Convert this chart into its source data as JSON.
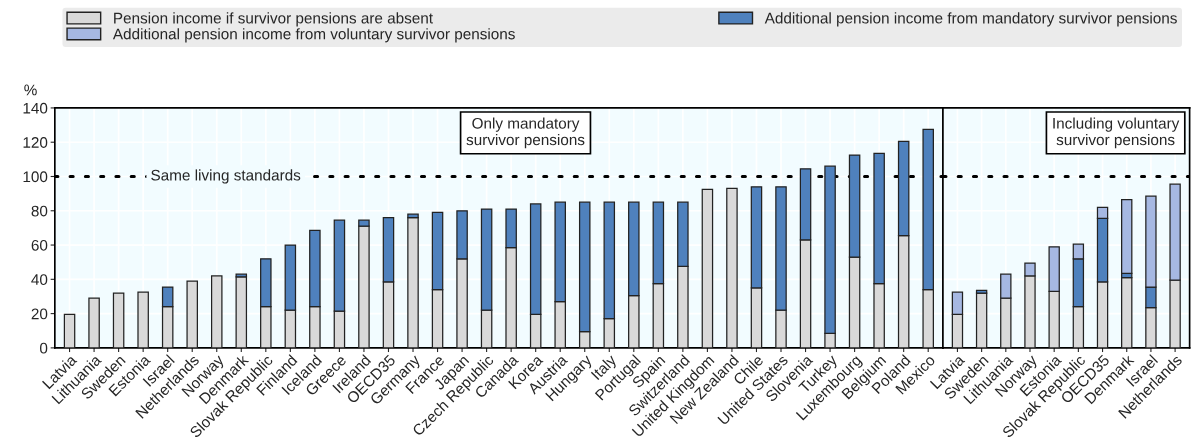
{
  "chart_data": [
    {
      "type": "bar",
      "stacked": true,
      "ylabel": "%",
      "categories": [
        "Latvia",
        "Lithuania",
        "Sweden",
        "Estonia",
        "Israel",
        "Netherlands",
        "Norway",
        "Denmark",
        "Slovak Republic",
        "Finland",
        "Iceland",
        "Greece",
        "Ireland",
        "OECD35",
        "Germany",
        "France",
        "Japan",
        "Czech Republic",
        "Canada",
        "Korea",
        "Austria",
        "Hungary",
        "Italy",
        "Portugal",
        "Spain",
        "Switzerland",
        "United Kingdom",
        "New Zealand",
        "Chile",
        "United States",
        "Slovenia",
        "Turkey",
        "Luxembourg",
        "Belgium",
        "Poland",
        "Mexico"
      ],
      "series": [
        {
          "name": "Pension income if survivor pensions are absent",
          "color": "#d9d9d9",
          "values": [
            19.5,
            29,
            32,
            32.5,
            24,
            39,
            42,
            41.5,
            24,
            22,
            24,
            21.5,
            71,
            38.5,
            76,
            34,
            52,
            22,
            58.5,
            19.5,
            27,
            9.5,
            17,
            30.5,
            37.5,
            47.5,
            92.5,
            93,
            35,
            22,
            63,
            8.5,
            53,
            37.5,
            65.5,
            34
          ]
        },
        {
          "name": "Additional pension income from mandatory survivor pensions",
          "color": "#4f81bd",
          "values": [
            null,
            null,
            null,
            null,
            11.5,
            null,
            null,
            1.5,
            28,
            38,
            44.5,
            53,
            3.5,
            37.5,
            2,
            45,
            28,
            59,
            22.5,
            64.5,
            58,
            75.5,
            68,
            54.5,
            47.5,
            37.5,
            null,
            null,
            59,
            72,
            41.5,
            97.5,
            59.5,
            76,
            55,
            93.5
          ]
        },
        {
          "name": "Additional pension income from voluntary survivor pensions",
          "color": "#a6b8e2",
          "values": [
            null,
            null,
            null,
            null,
            null,
            null,
            null,
            null,
            null,
            null,
            null,
            null,
            null,
            null,
            null,
            null,
            null,
            null,
            null,
            null,
            null,
            null,
            null,
            null,
            null,
            null,
            null,
            null,
            null,
            null,
            null,
            null,
            null,
            null,
            null,
            null
          ]
        }
      ],
      "ylim": [
        0,
        140
      ],
      "yticks": [
        0,
        20,
        40,
        60,
        80,
        100,
        120,
        140
      ],
      "grid": true,
      "legend": "top",
      "ref_lines": [
        {
          "axis": "y",
          "value": 100,
          "label": "Same living standards",
          "color": "#000000",
          "line_style": "dotted"
        }
      ],
      "annotations": [
        "Only mandatory\nsurvivor pensions"
      ]
    },
    {
      "type": "bar",
      "stacked": true,
      "categories": [
        "Latvia",
        "Sweden",
        "Lithuania",
        "Norway",
        "Estonia",
        "Slovak Republic",
        "OECD35",
        "Denmark",
        "Israel",
        "Netherlands"
      ],
      "series": [
        {
          "color": "#d9d9d9",
          "values": [
            19.5,
            32,
            29,
            42,
            33,
            24,
            38.5,
            41,
            23.5,
            39.5
          ]
        },
        {
          "color": "#4f81bd",
          "values": [
            null,
            1.5,
            null,
            null,
            null,
            28,
            37,
            2.5,
            12,
            null
          ]
        },
        {
          "color": "#a6b8e2",
          "values": [
            13,
            null,
            14,
            7.5,
            26,
            8.5,
            6.5,
            43,
            53,
            56
          ]
        }
      ],
      "ylim": [
        0,
        140
      ],
      "yticks": [
        0,
        20,
        40,
        60,
        80,
        100,
        120,
        140
      ],
      "grid": true,
      "tick_labels": "x",
      "ref_lines": [
        {
          "axis": "y",
          "value": 100,
          "color": "#000000",
          "line_style": "dotted"
        }
      ],
      "annotations": [
        "Including voluntary\nsurvivor pensions"
      ]
    }
  ]
}
